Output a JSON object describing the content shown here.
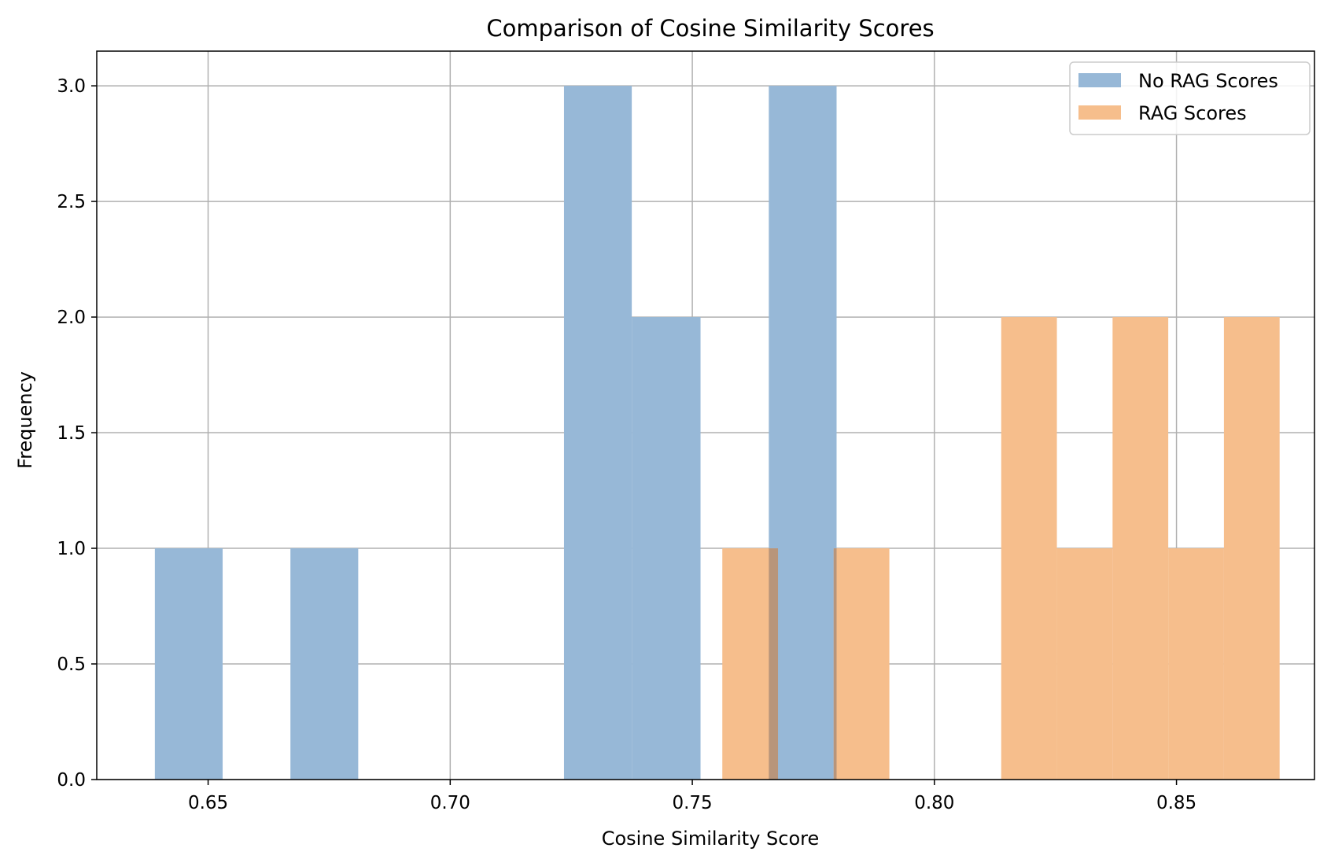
{
  "chart_data": {
    "type": "bar",
    "title": "Comparison of Cosine Similarity Scores",
    "xlabel": "Cosine Similarity Score",
    "ylabel": "Frequency",
    "xlim": [
      0.627,
      0.8785
    ],
    "ylim": [
      0,
      3.15
    ],
    "x_ticks": [
      0.65,
      0.7,
      0.75,
      0.8,
      0.85
    ],
    "x_tick_labels": [
      "0.65",
      "0.70",
      "0.75",
      "0.80",
      "0.85"
    ],
    "y_ticks": [
      0.0,
      0.5,
      1.0,
      1.5,
      2.0,
      2.5,
      3.0
    ],
    "y_tick_labels": [
      "0.0",
      "0.5",
      "1.0",
      "1.5",
      "2.0",
      "2.5",
      "3.0"
    ],
    "grid": true,
    "legend_position": "top-right",
    "series": [
      {
        "name": "No RAG Scores",
        "color": "#97b8d7",
        "bins": [
          {
            "x0": 0.639,
            "x1": 0.653,
            "count": 1
          },
          {
            "x0": 0.667,
            "x1": 0.681,
            "count": 1
          },
          {
            "x0": 0.7235,
            "x1": 0.7375,
            "count": 3
          },
          {
            "x0": 0.7375,
            "x1": 0.7517,
            "count": 2
          },
          {
            "x0": 0.7658,
            "x1": 0.7798,
            "count": 3
          }
        ]
      },
      {
        "name": "RAG Scores",
        "color": "#f6be8c",
        "bins": [
          {
            "x0": 0.7562,
            "x1": 0.7677,
            "count": 1
          },
          {
            "x0": 0.7792,
            "x1": 0.7907,
            "count": 1
          },
          {
            "x0": 0.8138,
            "x1": 0.8253,
            "count": 2
          },
          {
            "x0": 0.8253,
            "x1": 0.8368,
            "count": 1
          },
          {
            "x0": 0.8368,
            "x1": 0.8483,
            "count": 2
          },
          {
            "x0": 0.8483,
            "x1": 0.8598,
            "count": 1
          },
          {
            "x0": 0.8598,
            "x1": 0.8713,
            "count": 2
          }
        ]
      }
    ],
    "overlap_color": "#b8957b"
  }
}
